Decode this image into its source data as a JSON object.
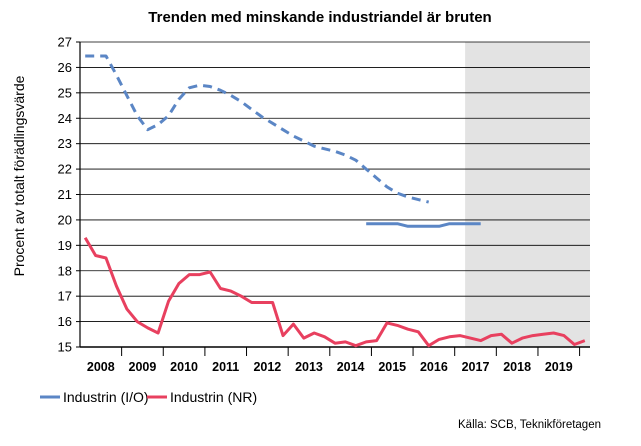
{
  "chart_data": {
    "type": "line",
    "title": "Trenden med minskande industriandel är bruten",
    "ylabel": "Procent av totalt förädlingsvärde",
    "xlabel": "",
    "ylim": [
      15,
      27
    ],
    "yticks": [
      15,
      16,
      17,
      18,
      19,
      20,
      21,
      22,
      23,
      24,
      25,
      26,
      27
    ],
    "xlim": [
      2007.625,
      2019.875
    ],
    "categories": [
      "2008",
      "2009",
      "2010",
      "2011",
      "2012",
      "2013",
      "2014",
      "2015",
      "2016",
      "2017",
      "2018",
      "2019"
    ],
    "shaded_region": [
      2016.875,
      2019.875
    ],
    "grid": "horizontal",
    "legend_position": "bottom-left",
    "source": "Källa: SCB, Teknikföretagen",
    "series": [
      {
        "name": "Industrin (I/O)",
        "color": "#5b86c5",
        "style": "dashed-then-solid",
        "dashed_points": [
          [
            2007.75,
            26.45
          ],
          [
            2008.0,
            26.45
          ],
          [
            2008.25,
            26.45
          ],
          [
            2008.5,
            25.7
          ],
          [
            2008.75,
            24.9
          ],
          [
            2009.0,
            24.1
          ],
          [
            2009.25,
            23.55
          ],
          [
            2009.5,
            23.75
          ],
          [
            2009.75,
            24.1
          ],
          [
            2010.0,
            24.75
          ],
          [
            2010.25,
            25.2
          ],
          [
            2010.5,
            25.3
          ],
          [
            2010.75,
            25.25
          ],
          [
            2011.0,
            25.1
          ],
          [
            2011.25,
            24.9
          ],
          [
            2011.5,
            24.65
          ],
          [
            2011.75,
            24.35
          ],
          [
            2012.0,
            24.05
          ],
          [
            2012.25,
            23.8
          ],
          [
            2012.5,
            23.55
          ],
          [
            2012.75,
            23.3
          ],
          [
            2013.0,
            23.1
          ],
          [
            2013.25,
            22.9
          ],
          [
            2013.5,
            22.8
          ],
          [
            2013.75,
            22.7
          ],
          [
            2014.0,
            22.55
          ],
          [
            2014.25,
            22.35
          ],
          [
            2014.5,
            22.0
          ],
          [
            2014.75,
            21.65
          ],
          [
            2015.0,
            21.3
          ],
          [
            2015.25,
            21.05
          ],
          [
            2015.5,
            20.9
          ],
          [
            2015.75,
            20.8
          ],
          [
            2016.0,
            20.7
          ]
        ],
        "solid_points": [
          [
            2014.5,
            19.85
          ],
          [
            2014.75,
            19.85
          ],
          [
            2015.0,
            19.85
          ],
          [
            2015.25,
            19.85
          ],
          [
            2015.5,
            19.75
          ],
          [
            2015.75,
            19.75
          ],
          [
            2016.0,
            19.75
          ],
          [
            2016.25,
            19.75
          ],
          [
            2016.5,
            19.85
          ],
          [
            2016.75,
            19.85
          ],
          [
            2017.0,
            19.85
          ],
          [
            2017.25,
            19.85
          ]
        ]
      },
      {
        "name": "Industrin (NR)",
        "color": "#e8405f",
        "style": "solid",
        "points": [
          [
            2007.75,
            19.3
          ],
          [
            2008.0,
            18.6
          ],
          [
            2008.25,
            18.5
          ],
          [
            2008.5,
            17.4
          ],
          [
            2008.75,
            16.5
          ],
          [
            2009.0,
            16.0
          ],
          [
            2009.25,
            15.75
          ],
          [
            2009.5,
            15.55
          ],
          [
            2009.75,
            16.8
          ],
          [
            2010.0,
            17.5
          ],
          [
            2010.25,
            17.85
          ],
          [
            2010.5,
            17.85
          ],
          [
            2010.75,
            17.95
          ],
          [
            2011.0,
            17.3
          ],
          [
            2011.25,
            17.2
          ],
          [
            2011.5,
            17.0
          ],
          [
            2011.75,
            16.75
          ],
          [
            2012.0,
            16.75
          ],
          [
            2012.25,
            16.75
          ],
          [
            2012.5,
            15.45
          ],
          [
            2012.75,
            15.9
          ],
          [
            2013.0,
            15.35
          ],
          [
            2013.25,
            15.55
          ],
          [
            2013.5,
            15.4
          ],
          [
            2013.75,
            15.15
          ],
          [
            2014.0,
            15.2
          ],
          [
            2014.25,
            15.05
          ],
          [
            2014.5,
            15.2
          ],
          [
            2014.75,
            15.25
          ],
          [
            2015.0,
            15.95
          ],
          [
            2015.25,
            15.85
          ],
          [
            2015.5,
            15.7
          ],
          [
            2015.75,
            15.6
          ],
          [
            2016.0,
            15.05
          ],
          [
            2016.25,
            15.3
          ],
          [
            2016.5,
            15.4
          ],
          [
            2016.75,
            15.45
          ],
          [
            2017.0,
            15.35
          ],
          [
            2017.25,
            15.25
          ],
          [
            2017.5,
            15.45
          ],
          [
            2017.75,
            15.5
          ],
          [
            2018.0,
            15.15
          ],
          [
            2018.25,
            15.35
          ],
          [
            2018.5,
            15.45
          ],
          [
            2018.75,
            15.5
          ],
          [
            2019.0,
            15.55
          ],
          [
            2019.25,
            15.45
          ],
          [
            2019.5,
            15.1
          ],
          [
            2019.75,
            15.25
          ]
        ]
      }
    ]
  }
}
